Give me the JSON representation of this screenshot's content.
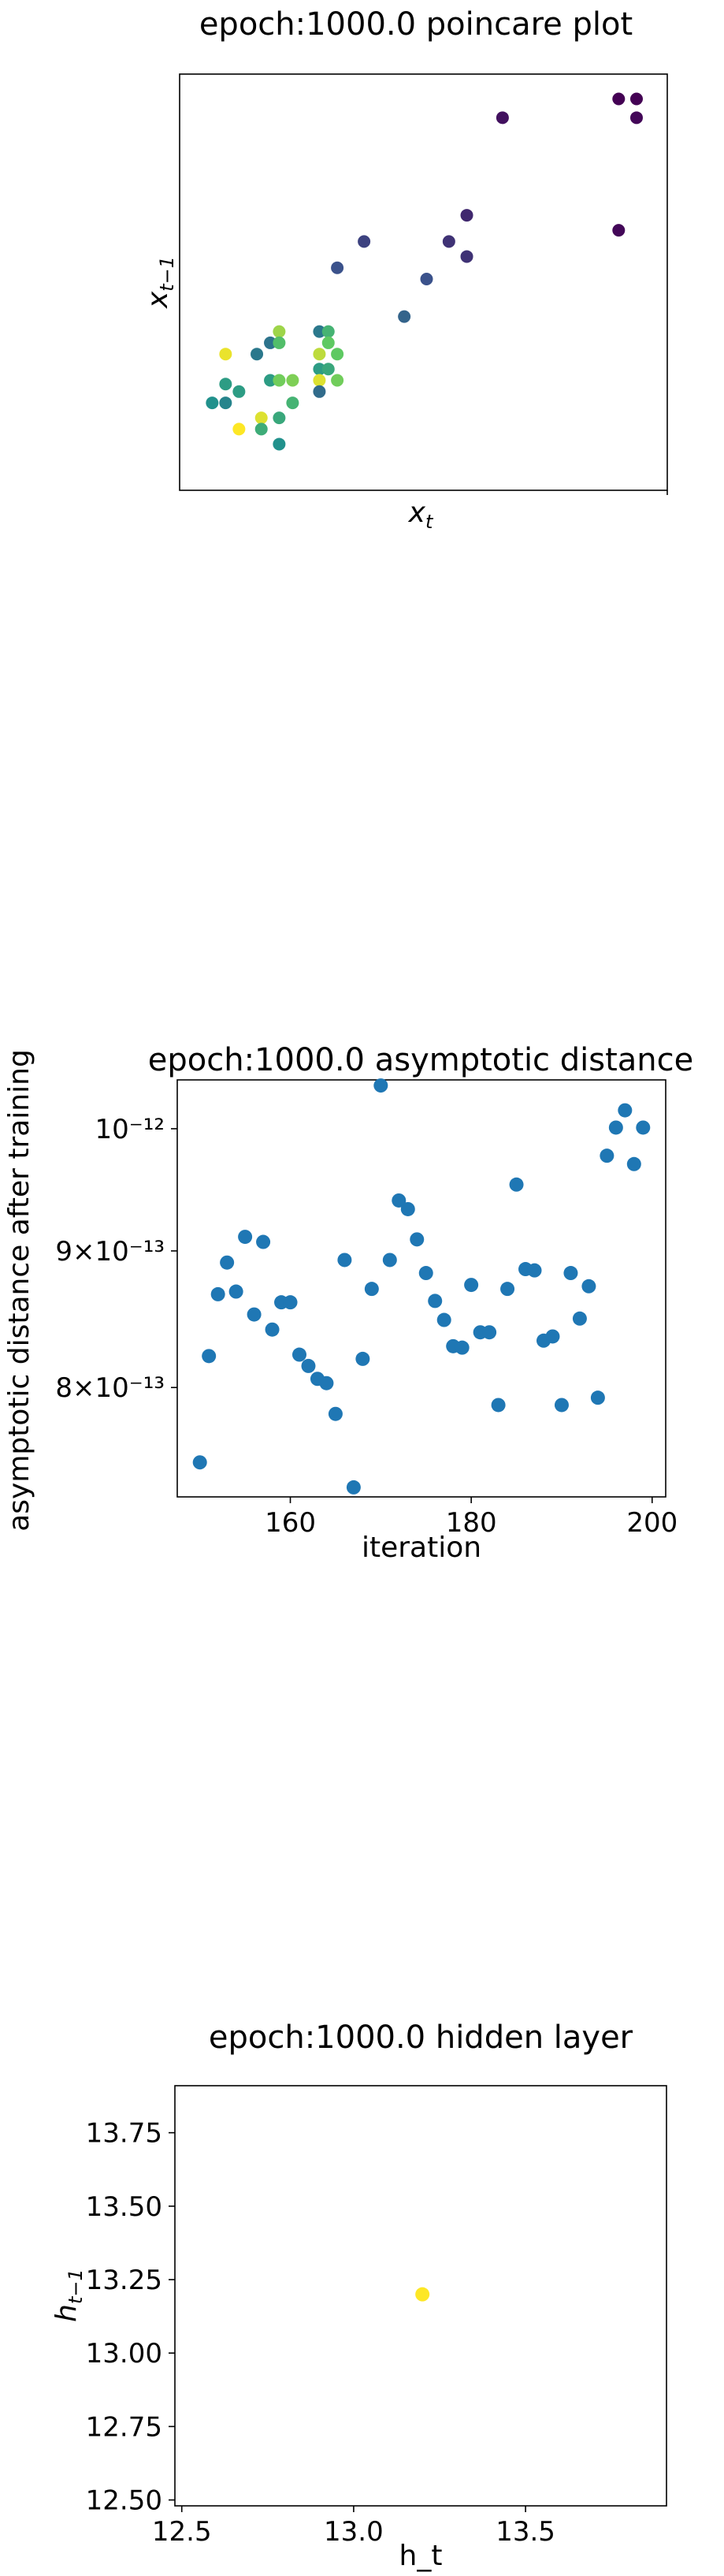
{
  "chart_data": [
    {
      "type": "scatter",
      "title": "epoch:1000.0 poincare plot",
      "xlabel": "x_t",
      "ylabel": "x_{t-1}",
      "colormap": "viridis",
      "xlim": [
        0,
        1
      ],
      "ylim": [
        0,
        1
      ],
      "points": [
        {
          "x": 0.02,
          "y": 0.17,
          "c": 0.5
        },
        {
          "x": 0.05,
          "y": 0.22,
          "c": 0.55
        },
        {
          "x": 0.05,
          "y": 0.17,
          "c": 0.45
        },
        {
          "x": 0.05,
          "y": 0.3,
          "c": 0.97
        },
        {
          "x": 0.08,
          "y": 0.2,
          "c": 0.55
        },
        {
          "x": 0.08,
          "y": 0.1,
          "c": 1.0
        },
        {
          "x": 0.12,
          "y": 0.3,
          "c": 0.4
        },
        {
          "x": 0.13,
          "y": 0.13,
          "c": 0.95
        },
        {
          "x": 0.13,
          "y": 0.1,
          "c": 0.62
        },
        {
          "x": 0.15,
          "y": 0.33,
          "c": 0.38
        },
        {
          "x": 0.15,
          "y": 0.23,
          "c": 0.55
        },
        {
          "x": 0.17,
          "y": 0.36,
          "c": 0.85
        },
        {
          "x": 0.17,
          "y": 0.33,
          "c": 0.7
        },
        {
          "x": 0.17,
          "y": 0.23,
          "c": 0.78
        },
        {
          "x": 0.17,
          "y": 0.13,
          "c": 0.6
        },
        {
          "x": 0.17,
          "y": 0.06,
          "c": 0.5
        },
        {
          "x": 0.2,
          "y": 0.23,
          "c": 0.8
        },
        {
          "x": 0.2,
          "y": 0.17,
          "c": 0.65
        },
        {
          "x": 0.26,
          "y": 0.36,
          "c": 0.4
        },
        {
          "x": 0.26,
          "y": 0.3,
          "c": 0.9
        },
        {
          "x": 0.26,
          "y": 0.26,
          "c": 0.55
        },
        {
          "x": 0.26,
          "y": 0.23,
          "c": 0.95
        },
        {
          "x": 0.26,
          "y": 0.2,
          "c": 0.35
        },
        {
          "x": 0.28,
          "y": 0.36,
          "c": 0.65
        },
        {
          "x": 0.28,
          "y": 0.33,
          "c": 0.75
        },
        {
          "x": 0.28,
          "y": 0.26,
          "c": 0.6
        },
        {
          "x": 0.3,
          "y": 0.3,
          "c": 0.75
        },
        {
          "x": 0.3,
          "y": 0.23,
          "c": 0.78
        },
        {
          "x": 0.3,
          "y": 0.53,
          "c": 0.25
        },
        {
          "x": 0.36,
          "y": 0.6,
          "c": 0.2
        },
        {
          "x": 0.45,
          "y": 0.4,
          "c": 0.32
        },
        {
          "x": 0.5,
          "y": 0.5,
          "c": 0.25
        },
        {
          "x": 0.55,
          "y": 0.6,
          "c": 0.15
        },
        {
          "x": 0.59,
          "y": 0.56,
          "c": 0.15
        },
        {
          "x": 0.59,
          "y": 0.67,
          "c": 0.12
        },
        {
          "x": 0.67,
          "y": 0.93,
          "c": 0.05
        },
        {
          "x": 0.93,
          "y": 0.63,
          "c": 0.02
        },
        {
          "x": 0.93,
          "y": 0.98,
          "c": 0.0
        },
        {
          "x": 0.97,
          "y": 0.98,
          "c": 0.0
        },
        {
          "x": 0.97,
          "y": 0.93,
          "c": 0.02
        }
      ]
    },
    {
      "type": "scatter",
      "title": "epoch:1000.0 asymptotic distance",
      "xlabel": "iteration",
      "ylabel": "asymptotic distance after training",
      "yscale": "log",
      "xlim": [
        147.5,
        201.5
      ],
      "ylim": [
        7.28e-13,
        1.043e-12
      ],
      "xticks": [
        160,
        180,
        200
      ],
      "xtick_labels": [
        "160",
        "180",
        "200"
      ],
      "yticks": [
        8e-13,
        9e-13,
        1e-12
      ],
      "ytick_labels": [
        "8×10⁻¹³",
        "9×10⁻¹³",
        "10⁻¹²"
      ],
      "color": "#1f77b4",
      "x": [
        150,
        151,
        152,
        153,
        154,
        155,
        156,
        157,
        158,
        159,
        160,
        161,
        162,
        163,
        164,
        165,
        166,
        167,
        168,
        169,
        170,
        171,
        172,
        173,
        174,
        175,
        176,
        177,
        178,
        179,
        180,
        181,
        182,
        183,
        184,
        185,
        186,
        187,
        188,
        189,
        190,
        191,
        192,
        193,
        194,
        195,
        196,
        197,
        198,
        199
      ],
      "y": [
        7.5e-13,
        8.22e-13,
        8.67e-13,
        8.91e-13,
        8.69e-13,
        9.11e-13,
        8.52e-13,
        9.07e-13,
        8.41e-13,
        8.61e-13,
        8.61e-13,
        8.23e-13,
        8.15e-13,
        8.06e-13,
        8.03e-13,
        7.82e-13,
        8.93e-13,
        7.34e-13,
        8.2e-13,
        8.71e-13,
        1.038e-12,
        8.93e-13,
        9.4e-13,
        9.33e-13,
        9.09e-13,
        8.83e-13,
        8.62e-13,
        8.48e-13,
        8.29e-13,
        8.28e-13,
        8.74e-13,
        8.39e-13,
        8.39e-13,
        7.88e-13,
        8.71e-13,
        9.53e-13,
        8.86e-13,
        8.85e-13,
        8.33e-13,
        8.36e-13,
        7.88e-13,
        8.83e-13,
        8.49e-13,
        8.73e-13,
        7.93e-13,
        9.77e-13,
        1.001e-12,
        1.016e-12,
        9.7e-13,
        1.001e-12
      ]
    },
    {
      "type": "scatter",
      "title": "epoch:1000.0 hidden layer",
      "xlabel": "h_t",
      "ylabel": "h_{t-1}",
      "xlim": [
        12.48,
        13.91
      ],
      "ylim": [
        12.48,
        13.91
      ],
      "xticks": [
        12.5,
        13.0,
        13.5
      ],
      "xtick_labels": [
        "12.5",
        "13.0",
        "13.5"
      ],
      "yticks": [
        12.5,
        12.75,
        13.0,
        13.25,
        13.5,
        13.75
      ],
      "ytick_labels": [
        "12.50",
        "12.75",
        "13.00",
        "13.25",
        "13.50",
        "13.75"
      ],
      "color": "#fde725",
      "points": [
        {
          "x": 13.2,
          "y": 13.2
        }
      ]
    }
  ]
}
